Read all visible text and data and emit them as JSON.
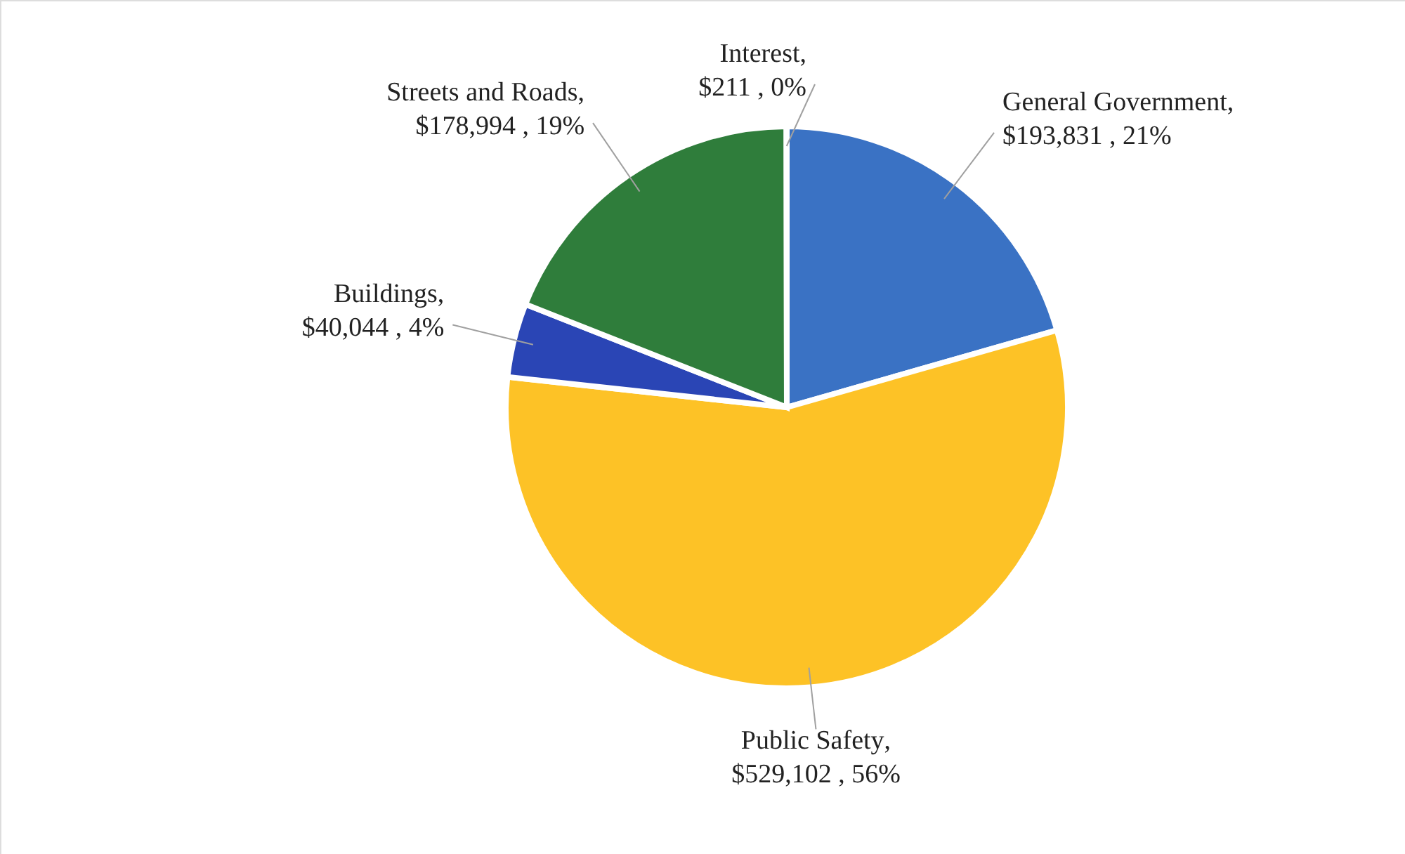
{
  "chart_data": {
    "type": "pie",
    "categories": [
      "General Government",
      "Public Safety",
      "Buildings",
      "Streets and Roads",
      "Interest"
    ],
    "values": [
      193831,
      529102,
      40044,
      178994,
      211
    ],
    "colors": [
      "#3a72c4",
      "#fdc226",
      "#2a45b5",
      "#2f7d3b",
      "#d0d0d0"
    ],
    "value_labels": [
      "$193,831 , 21%",
      "$529,102 , 56%",
      "$40,044 , 4%",
      "$178,994 , 19%",
      "$211 , 0%"
    ],
    "annotations": [
      ","
    ],
    "legend": false
  }
}
